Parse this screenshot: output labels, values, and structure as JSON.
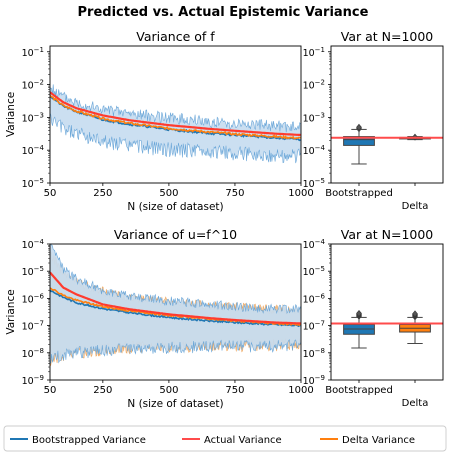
{
  "suptitle": "Predicted vs. Actual Epistemic Variance",
  "legend": {
    "entries": [
      {
        "label": "Bootstrapped Variance",
        "color": "#1f77b4"
      },
      {
        "label": "Actual Variance",
        "color": "#ff4b4b"
      },
      {
        "label": "Delta Variance",
        "color": "#ff7f0e"
      }
    ]
  },
  "chart_data": [
    {
      "type": "line",
      "title": "Variance of f",
      "xlabel": "N (size of dataset)",
      "ylabel": "Variance",
      "xlim": [
        50,
        1000
      ],
      "ylim": [
        1e-05,
        0.15
      ],
      "yscale": "log",
      "xticks": [
        50,
        250,
        500,
        750,
        1000
      ],
      "yticks": [
        {
          "value": 1e-05,
          "label": "10",
          "exp": "−5"
        },
        {
          "value": 0.0001,
          "label": "10",
          "exp": "−4"
        },
        {
          "value": 0.001,
          "label": "10",
          "exp": "−3"
        },
        {
          "value": 0.01,
          "label": "10",
          "exp": "−2"
        },
        {
          "value": 0.1,
          "label": "10",
          "exp": "−1"
        }
      ],
      "x": [
        50,
        100,
        150,
        250,
        350,
        500,
        650,
        750,
        900,
        1000
      ],
      "series": [
        {
          "name": "Bootstrapped Variance",
          "values": [
            0.0045,
            0.0022,
            0.0015,
            0.00085,
            0.00062,
            0.00043,
            0.00033,
            0.00029,
            0.00024,
            0.00021
          ],
          "lower": [
            0.0009,
            0.00045,
            0.00032,
            0.00019,
            0.00014,
            0.000105,
            9e-05,
            8e-05,
            7e-05,
            6.5e-05
          ],
          "upper": [
            0.008,
            0.0042,
            0.0029,
            0.0017,
            0.0013,
            0.00095,
            0.00075,
            0.00065,
            0.00055,
            0.0005
          ]
        },
        {
          "name": "Actual Variance",
          "values": [
            0.0058,
            0.0029,
            0.0019,
            0.00115,
            0.00082,
            0.00058,
            0.00045,
            0.00039,
            0.00032,
            0.00029
          ]
        },
        {
          "name": "Delta Variance",
          "values": [
            0.0046,
            0.0023,
            0.00155,
            0.00092,
            0.00066,
            0.00046,
            0.00036,
            0.00031,
            0.00026,
            0.00023
          ]
        }
      ]
    },
    {
      "type": "box",
      "title": "Var at N=1000",
      "ylim": [
        1e-05,
        0.15
      ],
      "yscale": "log",
      "yticks": [
        {
          "value": 1e-05,
          "label": "10",
          "exp": "−5"
        },
        {
          "value": 0.0001,
          "label": "10",
          "exp": "−4"
        },
        {
          "value": 0.001,
          "label": "10",
          "exp": "−3"
        },
        {
          "value": 0.01,
          "label": "10",
          "exp": "−2"
        },
        {
          "value": 0.1,
          "label": "10",
          "exp": "−1"
        }
      ],
      "categories": [
        "Bootstrapped",
        "Delta"
      ],
      "boxes": [
        {
          "q1": 0.00014,
          "median": 0.00021,
          "q3": 0.00026,
          "whisker_low": 3.8e-05,
          "whisker_high": 0.00043,
          "fliers": [
            0.00045,
            0.0005
          ],
          "color": "#1f77b4"
        },
        {
          "q1": 0.000225,
          "median": 0.000235,
          "q3": 0.000245,
          "whisker_low": 0.00021,
          "whisker_high": 0.00026,
          "fliers": [
            0.00025
          ],
          "color": "#ff7f0e"
        }
      ],
      "reference_line": {
        "value": 0.00024,
        "color": "#ff4b4b"
      }
    },
    {
      "type": "line",
      "title": "Variance of u=f^10",
      "xlabel": "N (size of dataset)",
      "ylabel": "Variance",
      "xlim": [
        50,
        1000
      ],
      "ylim": [
        1e-09,
        0.0001
      ],
      "yscale": "log",
      "xticks": [
        50,
        250,
        500,
        750,
        1000
      ],
      "yticks": [
        {
          "value": 1e-09,
          "label": "10",
          "exp": "−9"
        },
        {
          "value": 1e-08,
          "label": "10",
          "exp": "−8"
        },
        {
          "value": 1e-07,
          "label": "10",
          "exp": "−7"
        },
        {
          "value": 1e-06,
          "label": "10",
          "exp": "−6"
        },
        {
          "value": 1e-05,
          "label": "10",
          "exp": "−5"
        },
        {
          "value": 0.0001,
          "label": "10",
          "exp": "−4"
        }
      ],
      "x": [
        50,
        100,
        150,
        250,
        350,
        500,
        650,
        750,
        900,
        1000
      ],
      "series": [
        {
          "name": "Bootstrapped Variance",
          "values": [
            2e-06,
            1.1e-06,
            7e-07,
            4.2e-07,
            3e-07,
            2e-07,
            1.5e-07,
            1.3e-07,
            1.1e-07,
            1e-07
          ],
          "lower": [
            6e-09,
            8e-09,
            1e-08,
            1.2e-08,
            1.5e-08,
            1.5e-08,
            1.7e-08,
            1.7e-08,
            1.8e-08,
            1.8e-08
          ],
          "upper": [
            9e-05,
            1.2e-05,
            5e-06,
            2e-06,
            1.2e-06,
            8e-07,
            6e-07,
            5e-07,
            4.2e-07,
            4e-07
          ]
        },
        {
          "name": "Actual Variance",
          "values": [
            9e-06,
            2.5e-06,
            1.4e-06,
            6e-07,
            4e-07,
            2.6e-07,
            1.9e-07,
            1.6e-07,
            1.3e-07,
            1.2e-07
          ]
        },
        {
          "name": "Delta Variance",
          "values": [
            2.5e-06,
            1.3e-06,
            8.5e-07,
            5e-07,
            3.5e-07,
            2.4e-07,
            1.8e-07,
            1.5e-07,
            1.2e-07,
            1.1e-07
          ],
          "lower": [
            5e-09,
            8e-09,
            1e-08,
            1.3e-08,
            1.6e-08,
            1.7e-08,
            1.8e-08,
            1.8e-08,
            1.9e-08,
            2e-08
          ],
          "upper": [
            5e-05,
            8e-06,
            4e-06,
            1.8e-06,
            1.1e-06,
            7.5e-07,
            5.5e-07,
            4.7e-07,
            4e-07,
            3.8e-07
          ]
        }
      ]
    },
    {
      "type": "box",
      "title": "Var at N=1000",
      "ylim": [
        1e-09,
        0.0001
      ],
      "yscale": "log",
      "yticks": [
        {
          "value": 1e-09,
          "label": "10",
          "exp": "−9"
        },
        {
          "value": 1e-08,
          "label": "10",
          "exp": "−8"
        },
        {
          "value": 1e-07,
          "label": "10",
          "exp": "−7"
        },
        {
          "value": 1e-06,
          "label": "10",
          "exp": "−6"
        },
        {
          "value": 1e-05,
          "label": "10",
          "exp": "−5"
        },
        {
          "value": 0.0001,
          "label": "10",
          "exp": "−4"
        }
      ],
      "categories": [
        "Bootstrapped",
        "Delta"
      ],
      "boxes": [
        {
          "q1": 4.8e-08,
          "median": 7.5e-08,
          "q3": 1.1e-07,
          "whisker_low": 1.5e-08,
          "whisker_high": 2e-07,
          "fliers": [
            2.2e-07,
            2.4e-07,
            2.6e-07,
            2.8e-07
          ],
          "color": "#1f77b4"
        },
        {
          "q1": 5.8e-08,
          "median": 8e-08,
          "q3": 1.1e-07,
          "whisker_low": 2.2e-08,
          "whisker_high": 2e-07,
          "fliers": [
            2.1e-07,
            2.3e-07,
            2.5e-07,
            2.7e-07
          ],
          "color": "#ff7f0e"
        }
      ],
      "reference_line": {
        "value": 1.2e-07,
        "color": "#ff4b4b"
      }
    }
  ]
}
